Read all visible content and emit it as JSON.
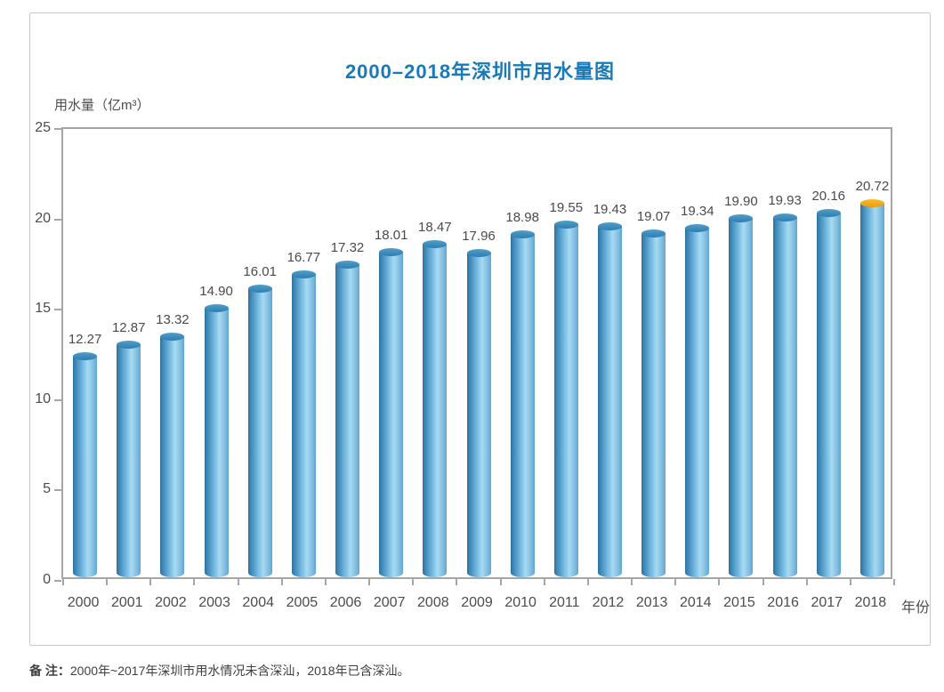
{
  "page": {
    "title": "2000–2018年深圳市用水量图",
    "y_axis_label": "用水量（亿m³）",
    "x_axis_label": "年份",
    "note_label": "备 注：",
    "note_text": "2000年~2017年深圳市用水情况未含深汕，2018年已含深汕。"
  },
  "colors": {
    "title_blue": "#1a79b8",
    "axis_gray": "#a6a6a6",
    "text_gray": "#4c4c4c",
    "bar_blue_light": "#a7daf2",
    "bar_blue_dark": "#2e739f",
    "bar_cap_blue": "#2e7dae",
    "bar_cap_gold": "#f0a81d"
  },
  "chart_data": {
    "type": "bar",
    "title": "2000–2018年深圳市用水量图",
    "xlabel": "年份",
    "ylabel": "用水量（亿m³）",
    "categories": [
      "2000",
      "2001",
      "2002",
      "2003",
      "2004",
      "2005",
      "2006",
      "2007",
      "2008",
      "2009",
      "2010",
      "2011",
      "2012",
      "2013",
      "2014",
      "2015",
      "2016",
      "2017",
      "2018"
    ],
    "values": [
      12.27,
      12.87,
      13.32,
      14.9,
      16.01,
      16.77,
      17.32,
      18.01,
      18.47,
      17.96,
      18.98,
      19.55,
      19.43,
      19.07,
      19.34,
      19.9,
      19.93,
      20.16,
      20.72
    ],
    "value_labels": [
      "12.27",
      "12.87",
      "13.32",
      "14.90",
      "16.01",
      "16.77",
      "17.32",
      "18.01",
      "18.47",
      "17.96",
      "18.98",
      "19.55",
      "19.43",
      "19.07",
      "19.34",
      "19.90",
      "19.93",
      "20.16",
      "20.72"
    ],
    "ylim": [
      0,
      25
    ],
    "yticks": [
      0,
      5,
      10,
      15,
      20,
      25
    ],
    "grid": false,
    "legend": null,
    "bar_style": "3d-cylinder",
    "highlight_category": "2018",
    "highlight_detail": "2018 bar has a gold/orange top cap; all other bars have blue caps",
    "note": "备 注：2000年~2017年深圳市用水情况未含深汕，2018年已含深汕。"
  }
}
